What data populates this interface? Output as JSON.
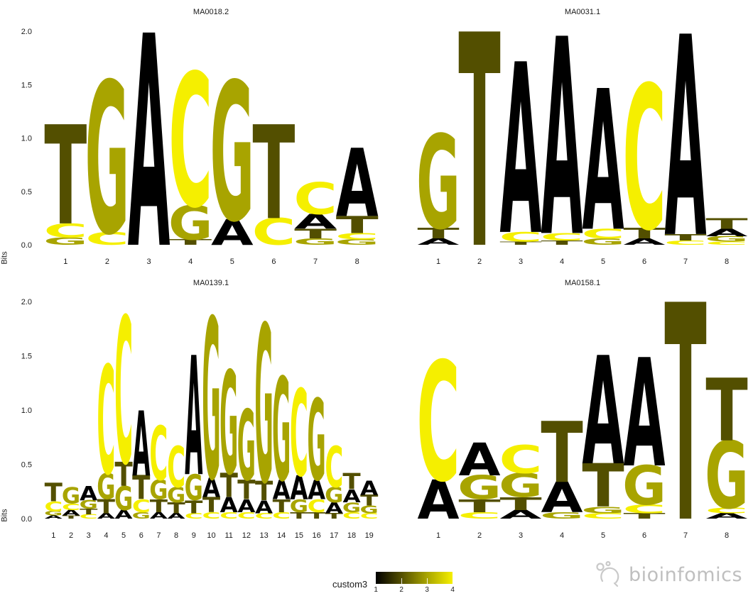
{
  "figure": {
    "ylabel": "Bits",
    "background": "#ffffff"
  },
  "letter_colors": {
    "A": "#000000",
    "C": "#f5ef00",
    "G": "#a8a400",
    "T": "#534f00"
  },
  "legend": {
    "title": "custom3",
    "ticks": [
      "1",
      "2",
      "3",
      "4"
    ],
    "gradient": [
      "#000000",
      "#534f00",
      "#a8a400",
      "#f5ef00"
    ]
  },
  "watermark": {
    "text": "bioinfomics",
    "color": "#bfbfbf"
  },
  "chart_data": [
    {
      "type": "sequence_logo",
      "title": "MA0018.2",
      "ylabel": "Bits",
      "ylim": [
        0,
        2
      ],
      "yticks": [
        "0.0",
        "0.5",
        "1.0",
        "1.5",
        "2.0"
      ],
      "xticks": [
        "1",
        "2",
        "3",
        "4",
        "5",
        "6",
        "7",
        "8"
      ],
      "stacks": [
        [
          [
            "G",
            0.07
          ],
          [
            "C",
            0.13
          ],
          [
            "T",
            0.93
          ]
        ],
        [
          [
            "C",
            0.12
          ],
          [
            "G",
            1.42
          ]
        ],
        [
          [
            "A",
            1.99
          ]
        ],
        [
          [
            "T",
            0.05
          ],
          [
            "G",
            0.32
          ],
          [
            "C",
            1.25
          ]
        ],
        [
          [
            "A",
            0.24
          ],
          [
            "G",
            1.3
          ]
        ],
        [
          [
            "C",
            0.25
          ],
          [
            "T",
            0.88
          ]
        ],
        [
          [
            "G",
            0.06
          ],
          [
            "T",
            0.09
          ],
          [
            "A",
            0.14
          ],
          [
            "C",
            0.3
          ]
        ],
        [
          [
            "G",
            0.05
          ],
          [
            "C",
            0.06
          ],
          [
            "T",
            0.16
          ],
          [
            "A",
            0.64
          ]
        ]
      ]
    },
    {
      "type": "sequence_logo",
      "title": "MA0031.1",
      "ylabel": "Bits",
      "ylim": [
        0,
        2
      ],
      "yticks": [
        "0.0",
        "0.5",
        "1.0",
        "1.5",
        "2.0"
      ],
      "xticks": [
        "1",
        "2",
        "3",
        "4",
        "5",
        "6",
        "7",
        "8"
      ],
      "stacks": [
        [
          [
            "A",
            0.06
          ],
          [
            "T",
            0.1
          ],
          [
            "G",
            0.88
          ]
        ],
        [
          [
            "T",
            2.0
          ]
        ],
        [
          [
            "T",
            0.03
          ],
          [
            "C",
            0.09
          ],
          [
            "A",
            1.6
          ]
        ],
        [
          [
            "T",
            0.04
          ],
          [
            "C",
            0.07
          ],
          [
            "A",
            1.85
          ]
        ],
        [
          [
            "G",
            0.06
          ],
          [
            "C",
            0.09
          ],
          [
            "A",
            1.32
          ]
        ],
        [
          [
            "A",
            0.06
          ],
          [
            "T",
            0.1
          ],
          [
            "C",
            1.35
          ]
        ],
        [
          [
            "C",
            0.04
          ],
          [
            "T",
            0.06
          ],
          [
            "A",
            1.88
          ]
        ],
        [
          [
            "C",
            0.03
          ],
          [
            "G",
            0.05
          ],
          [
            "A",
            0.07
          ],
          [
            "T",
            0.1
          ]
        ]
      ]
    },
    {
      "type": "sequence_logo",
      "title": "MA0139.1",
      "ylabel": "Bits",
      "ylim": [
        0,
        2
      ],
      "yticks": [
        "0.0",
        "0.5",
        "1.0",
        "1.5",
        "2.0"
      ],
      "xticks": [
        "1",
        "2",
        "3",
        "4",
        "5",
        "6",
        "7",
        "8",
        "9",
        "10",
        "11",
        "12",
        "13",
        "14",
        "15",
        "16",
        "17",
        "18",
        "19"
      ],
      "stacks": [
        [
          [
            "A",
            0.03
          ],
          [
            "G",
            0.04
          ],
          [
            "C",
            0.09
          ],
          [
            "T",
            0.17
          ]
        ],
        [
          [
            "T",
            0.03
          ],
          [
            "A",
            0.05
          ],
          [
            "C",
            0.06
          ],
          [
            "G",
            0.15
          ]
        ],
        [
          [
            "C",
            0.04
          ],
          [
            "T",
            0.05
          ],
          [
            "G",
            0.08
          ],
          [
            "A",
            0.13
          ]
        ],
        [
          [
            "A",
            0.05
          ],
          [
            "T",
            0.13
          ],
          [
            "G",
            0.24
          ],
          [
            "C",
            1.0
          ]
        ],
        [
          [
            "A",
            0.08
          ],
          [
            "G",
            0.22
          ],
          [
            "T",
            0.22
          ],
          [
            "C",
            1.35
          ]
        ],
        [
          [
            "G",
            0.06
          ],
          [
            "C",
            0.12
          ],
          [
            "T",
            0.22
          ],
          [
            "A",
            0.6
          ]
        ],
        [
          [
            "A",
            0.06
          ],
          [
            "T",
            0.12
          ],
          [
            "G",
            0.18
          ],
          [
            "C",
            0.5
          ]
        ],
        [
          [
            "A",
            0.05
          ],
          [
            "T",
            0.1
          ],
          [
            "G",
            0.14
          ],
          [
            "C",
            0.38
          ]
        ],
        [
          [
            "C",
            0.05
          ],
          [
            "T",
            0.12
          ],
          [
            "G",
            0.24
          ],
          [
            "A",
            1.1
          ]
        ],
        [
          [
            "C",
            0.06
          ],
          [
            "T",
            0.14
          ],
          [
            "A",
            0.18
          ],
          [
            "G",
            1.48
          ]
        ],
        [
          [
            "C",
            0.06
          ],
          [
            "A",
            0.14
          ],
          [
            "T",
            0.22
          ],
          [
            "G",
            0.95
          ]
        ],
        [
          [
            "C",
            0.06
          ],
          [
            "A",
            0.12
          ],
          [
            "T",
            0.18
          ],
          [
            "G",
            0.65
          ]
        ],
        [
          [
            "C",
            0.05
          ],
          [
            "A",
            0.12
          ],
          [
            "T",
            0.18
          ],
          [
            "G",
            1.45
          ]
        ],
        [
          [
            "C",
            0.06
          ],
          [
            "T",
            0.12
          ],
          [
            "A",
            0.18
          ],
          [
            "G",
            0.95
          ]
        ],
        [
          [
            "T",
            0.06
          ],
          [
            "G",
            0.12
          ],
          [
            "A",
            0.22
          ],
          [
            "C",
            0.8
          ]
        ],
        [
          [
            "T",
            0.06
          ],
          [
            "C",
            0.12
          ],
          [
            "A",
            0.18
          ],
          [
            "G",
            0.75
          ]
        ],
        [
          [
            "T",
            0.05
          ],
          [
            "A",
            0.1
          ],
          [
            "G",
            0.14
          ],
          [
            "C",
            0.38
          ]
        ],
        [
          [
            "C",
            0.06
          ],
          [
            "G",
            0.09
          ],
          [
            "A",
            0.12
          ],
          [
            "T",
            0.15
          ]
        ],
        [
          [
            "C",
            0.05
          ],
          [
            "G",
            0.07
          ],
          [
            "T",
            0.1
          ],
          [
            "A",
            0.13
          ]
        ]
      ]
    },
    {
      "type": "sequence_logo",
      "title": "MA0158.1",
      "ylabel": "Bits",
      "ylim": [
        0,
        2
      ],
      "yticks": [
        "0.0",
        "0.5",
        "1.0",
        "1.5",
        "2.0"
      ],
      "xticks": [
        "1",
        "2",
        "3",
        "4",
        "5",
        "6",
        "7",
        "8"
      ],
      "stacks": [
        [
          [
            "A",
            0.36
          ],
          [
            "C",
            1.1
          ]
        ],
        [
          [
            "C",
            0.06
          ],
          [
            "T",
            0.12
          ],
          [
            "G",
            0.22
          ],
          [
            "A",
            0.3
          ]
        ],
        [
          [
            "A",
            0.08
          ],
          [
            "T",
            0.12
          ],
          [
            "G",
            0.22
          ],
          [
            "C",
            0.26
          ]
        ],
        [
          [
            "G",
            0.06
          ],
          [
            "A",
            0.28
          ],
          [
            "T",
            0.56
          ]
        ],
        [
          [
            "C",
            0.05
          ],
          [
            "G",
            0.06
          ],
          [
            "T",
            0.4
          ],
          [
            "A",
            1.0
          ]
        ],
        [
          [
            "T",
            0.05
          ],
          [
            "C",
            0.08
          ],
          [
            "G",
            0.36
          ],
          [
            "A",
            1.0
          ]
        ],
        [
          [
            "T",
            2.0
          ]
        ],
        [
          [
            "A",
            0.05
          ],
          [
            "C",
            0.05
          ],
          [
            "G",
            0.62
          ],
          [
            "T",
            0.58
          ]
        ]
      ]
    }
  ]
}
